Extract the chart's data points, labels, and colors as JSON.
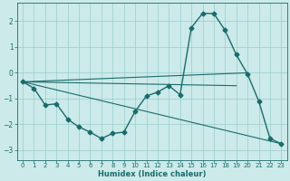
{
  "xlabel": "Humidex (Indice chaleur)",
  "background_color": "#cceaea",
  "grid_color": "#99cccc",
  "line_color": "#1a6b6b",
  "xlim": [
    -0.5,
    23.5
  ],
  "ylim": [
    -3.4,
    2.7
  ],
  "xticks": [
    0,
    1,
    2,
    3,
    4,
    5,
    6,
    7,
    8,
    9,
    10,
    11,
    12,
    13,
    14,
    15,
    16,
    17,
    18,
    19,
    20,
    21,
    22,
    23
  ],
  "yticks": [
    -3,
    -2,
    -1,
    0,
    1,
    2
  ],
  "main_curve": {
    "x": [
      0,
      1,
      2,
      3,
      4,
      5,
      6,
      7,
      8,
      9,
      10,
      11,
      12,
      13,
      14,
      15,
      16,
      17,
      18,
      19,
      20,
      21,
      22,
      23
    ],
    "y": [
      -0.35,
      -0.6,
      -1.25,
      -1.2,
      -1.8,
      -2.1,
      -2.3,
      -2.55,
      -2.35,
      -2.3,
      -1.5,
      -0.9,
      -0.75,
      -0.5,
      -0.85,
      1.75,
      2.3,
      2.3,
      1.65,
      0.7,
      -0.05,
      -1.1,
      -2.55,
      -2.75
    ]
  },
  "straight_lines": [
    {
      "x": [
        0,
        23
      ],
      "y": [
        -0.35,
        -2.75
      ]
    },
    {
      "x": [
        0,
        20
      ],
      "y": [
        -0.35,
        0.0
      ]
    },
    {
      "x": [
        0,
        19
      ],
      "y": [
        -0.35,
        -0.5
      ]
    }
  ]
}
